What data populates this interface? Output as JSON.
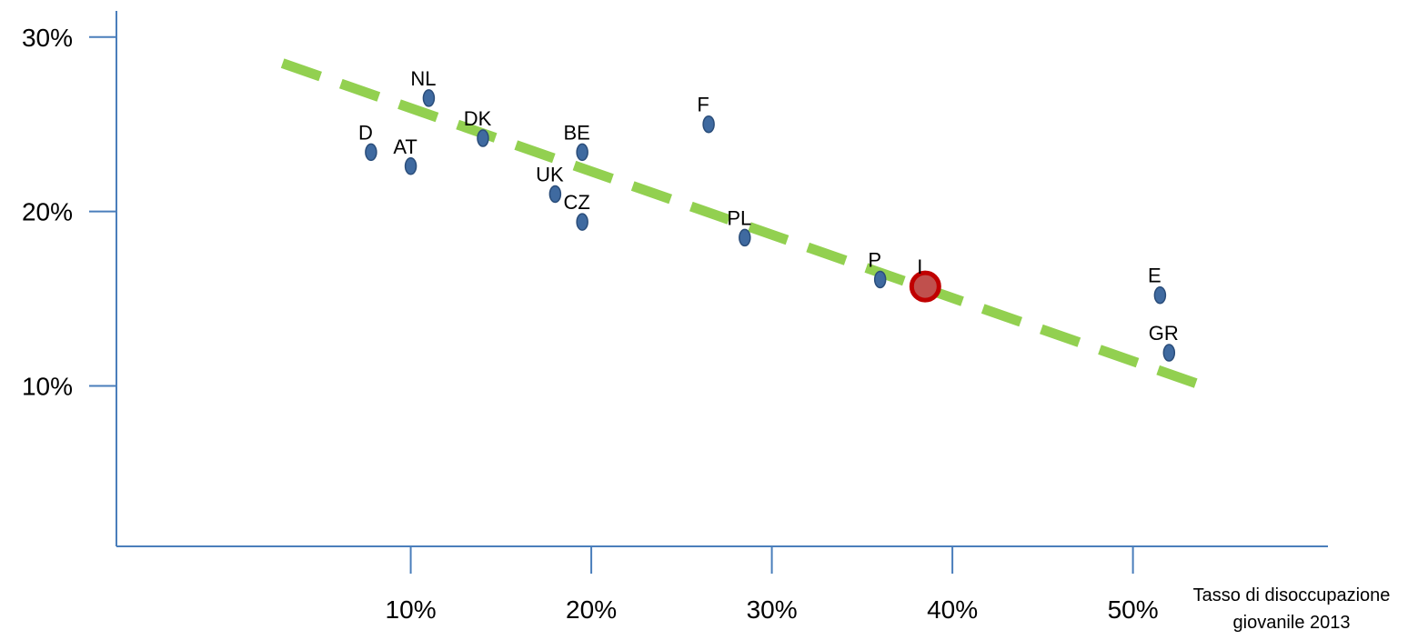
{
  "chart_data": {
    "type": "scatter",
    "title": "",
    "xlabel": [
      "Tasso di disoccupazione",
      "giovanile 2013"
    ],
    "ylabel": "",
    "x_ticks": [
      {
        "value": 10,
        "label": "10%"
      },
      {
        "value": 20,
        "label": "20%"
      },
      {
        "value": 30,
        "label": "30%"
      },
      {
        "value": 40,
        "label": "40%"
      },
      {
        "value": 50,
        "label": "50%"
      }
    ],
    "y_ticks": [
      {
        "value": 10,
        "label": "10%"
      },
      {
        "value": 20,
        "label": "20%"
      },
      {
        "value": 30,
        "label": "30%"
      }
    ],
    "points": [
      {
        "label": "D",
        "x": 7.8,
        "y": 23.4
      },
      {
        "label": "AT",
        "x": 10.0,
        "y": 22.6
      },
      {
        "label": "NL",
        "x": 11.0,
        "y": 26.5
      },
      {
        "label": "DK",
        "x": 14.0,
        "y": 24.2
      },
      {
        "label": "UK",
        "x": 18.0,
        "y": 21.0
      },
      {
        "label": "BE",
        "x": 19.5,
        "y": 23.4
      },
      {
        "label": "CZ",
        "x": 19.5,
        "y": 19.4
      },
      {
        "label": "F",
        "x": 26.5,
        "y": 25.0
      },
      {
        "label": "PL",
        "x": 28.5,
        "y": 18.5
      },
      {
        "label": "P",
        "x": 36.0,
        "y": 16.1
      },
      {
        "label": "I",
        "x": 38.5,
        "y": 15.7,
        "highlight": true
      },
      {
        "label": "E",
        "x": 51.5,
        "y": 15.2
      },
      {
        "label": "GR",
        "x": 52.0,
        "y": 11.9
      }
    ],
    "trendline": {
      "x": [
        2.9,
        53.9
      ],
      "y": [
        28.5,
        10.0
      ],
      "style": "dashed"
    },
    "xlim": [
      -6.3,
      60.8
    ],
    "ylim": [
      0.8,
      31.5
    ],
    "grid": false,
    "colors": {
      "axis": "#4a7ebb",
      "point": "#3f6aa0",
      "point_edge": "#2a4d7a",
      "highlight_point": "#c0504d",
      "highlight_edge": "#c00000",
      "trendline": "#92d050"
    }
  }
}
